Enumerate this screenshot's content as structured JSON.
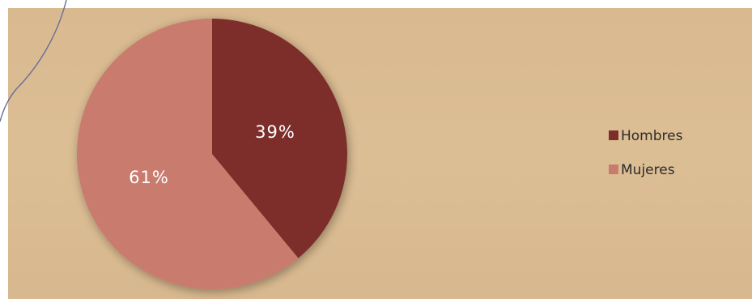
{
  "chart_data": {
    "type": "pie",
    "categories": [
      "Hombres",
      "Mujeres"
    ],
    "values": [
      39,
      61
    ],
    "labels": [
      "39%",
      "61%"
    ],
    "colors": [
      "#7d2d2a",
      "#c97b6e"
    ],
    "start_angle_deg": 0,
    "direction": "clockwise",
    "legend": "right",
    "title": ""
  }
}
